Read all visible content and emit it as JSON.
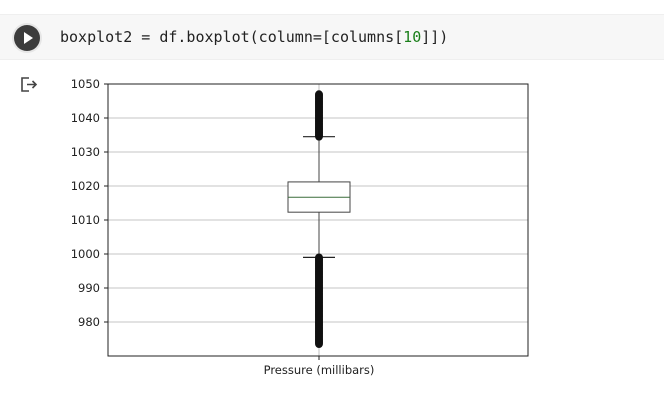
{
  "cell": {
    "code_prefix": "boxplot2 = df.boxplot(column=[columns[",
    "code_number": "10",
    "code_suffix": "]])"
  },
  "icons": {
    "run": "play-icon",
    "output": "output-redirect-icon"
  },
  "chart_data": {
    "type": "boxplot",
    "categories": [
      "Pressure (millibars)"
    ],
    "ylim": [
      970,
      1050
    ],
    "yticks": [
      980,
      990,
      1000,
      1010,
      1020,
      1030,
      1040,
      1050
    ],
    "grid": true,
    "box": {
      "whisker_low": 999,
      "q1": 1012.3,
      "median": 1016.7,
      "q3": 1021.2,
      "whisker_high": 1034.5
    },
    "outliers_high_range": [
      1034.5,
      1047
    ],
    "outliers_low_range": [
      973.5,
      999
    ]
  }
}
